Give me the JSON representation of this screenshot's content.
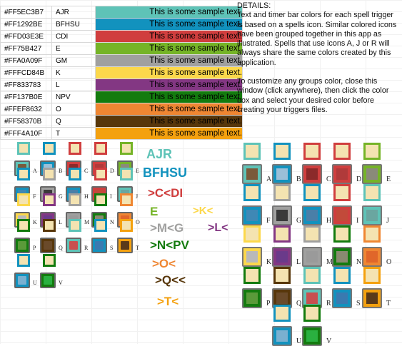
{
  "rows": [
    {
      "hex": "#FF5EC3B7",
      "group": "AJR",
      "sample": "This is some sample text.",
      "color": "#5EC3B7"
    },
    {
      "hex": "#FF1292BE",
      "group": "BFHSU",
      "sample": "This is some sample text.",
      "color": "#1292BE"
    },
    {
      "hex": "#FFD03E3E",
      "group": "CDI",
      "sample": "This is some sample text.",
      "color": "#D03E3E"
    },
    {
      "hex": "#FF75B427",
      "group": "E",
      "sample": "This is some sample text.",
      "color": "#75B427"
    },
    {
      "hex": "#FFA0A09F",
      "group": "GM",
      "sample": "This is some sample text.",
      "color": "#A0A09F"
    },
    {
      "hex": "#FFFCD84B",
      "group": "K",
      "sample": "This is some sample text.",
      "color": "#FCD84B"
    },
    {
      "hex": "#FF833783",
      "group": "L",
      "sample": "This is some sample text.",
      "color": "#833783"
    },
    {
      "hex": "#FF137B0E",
      "group": "NPV",
      "sample": "This is some sample text.",
      "color": "#137B0E"
    },
    {
      "hex": "#FFEF8632",
      "group": "O",
      "sample": "This is some sample text.",
      "color": "#EF8632"
    },
    {
      "hex": "#FF58370B",
      "group": "Q",
      "sample": "This is some sample text.",
      "color": "#58370B"
    },
    {
      "hex": "#FFF4A10F",
      "group": "T",
      "sample": "This is some sample text.",
      "color": "#F4A10F"
    }
  ],
  "details": {
    "heading": "DETAILS:",
    "para1": "Text and timer bar colors for each spell trigger is based on a spells icon. Similar colored icons have been grouped together in this app as illustrated. Spells that use icons A, J or R will always share the same colors created by this application.",
    "para2": "To customize any groups color, close this window (click anywhere), then click the color box and select your desired color before creating your triggers files."
  },
  "group_labels": [
    {
      "text": "AJR",
      "color": "#5EC3B7"
    },
    {
      "text": "BFHSU",
      "color": "#1292BE"
    },
    {
      "text": ">C<DI",
      "color": "#D03E3E"
    },
    {
      "text": "E",
      "color": "#75B427"
    },
    {
      "text": ">K<",
      "color": "#FCD84B"
    },
    {
      "text": ">M<G",
      "color": "#A0A09F"
    },
    {
      "text": ">L<",
      "color": "#833783"
    },
    {
      "text": ">N<PV",
      "color": "#137B0E"
    },
    {
      "text": ">O<",
      "color": "#EF8632"
    },
    {
      "text": ">Q<<",
      "color": "#58370B"
    },
    {
      "text": ">T<",
      "color": "#F4A10F"
    }
  ],
  "icons": [
    {
      "letter": "A",
      "group": "AJR",
      "art": "#7a5a3a",
      "name": "boot-icon"
    },
    {
      "letter": "B",
      "group": "BFHSU",
      "art": "#9bbfd8",
      "name": "eye-icon"
    },
    {
      "letter": "C",
      "group": "CDI",
      "art": "#8b2a2a",
      "name": "hand-icon"
    },
    {
      "letter": "D",
      "group": "CDI",
      "art": "#b03a3a",
      "name": "head-icon"
    },
    {
      "letter": "E",
      "group": "E",
      "art": "#8a8a7a",
      "name": "skull-icon"
    },
    {
      "letter": "F",
      "group": "BFHSU",
      "art": "#3f88b5",
      "name": "waves-icon"
    },
    {
      "letter": "G",
      "group": "GM",
      "art": "#3a3a3a",
      "name": "skull-dark-icon"
    },
    {
      "letter": "H",
      "group": "BFHSU",
      "art": "#4a7fa8",
      "name": "blue-hand-icon"
    },
    {
      "letter": "I",
      "group": "CDI",
      "art": "#c24a3a",
      "name": "fist-icon"
    },
    {
      "letter": "J",
      "group": "AJR",
      "art": "#6aa6a0",
      "name": "arm-icon"
    },
    {
      "letter": "K",
      "group": "K",
      "art": "#b9b9b9",
      "name": "shield-icon"
    },
    {
      "letter": "L",
      "group": "L",
      "art": "#6a3a8a",
      "name": "ghost-icon"
    },
    {
      "letter": "M",
      "group": "GM",
      "art": "#9a9a9a",
      "name": "tornado-icon"
    },
    {
      "letter": "N",
      "group": "NPV",
      "art": "#8a8a70",
      "name": "sword-icon"
    },
    {
      "letter": "O",
      "group": "O",
      "art": "#e0662a",
      "name": "fire-icon"
    },
    {
      "letter": "P",
      "group": "NPV",
      "art": "#5b9a3a",
      "name": "sprout-icon"
    },
    {
      "letter": "Q",
      "group": "Q",
      "art": "#6a4a2a",
      "name": "mountain-icon"
    },
    {
      "letter": "R",
      "group": "AJR",
      "art": "#c85050",
      "name": "muscle-icon"
    },
    {
      "letter": "S",
      "group": "BFHSU",
      "art": "#3a7ab0",
      "name": "snowflake-icon"
    },
    {
      "letter": "T",
      "group": "T",
      "art": "#5a3a1a",
      "name": "wolf-icon"
    },
    {
      "letter": "U",
      "group": "BFHSU",
      "art": "#7ab0d0",
      "name": "ice-icon"
    },
    {
      "letter": "V",
      "group": "NPV",
      "art": "#2ab040",
      "name": "green-orb-icon"
    }
  ]
}
